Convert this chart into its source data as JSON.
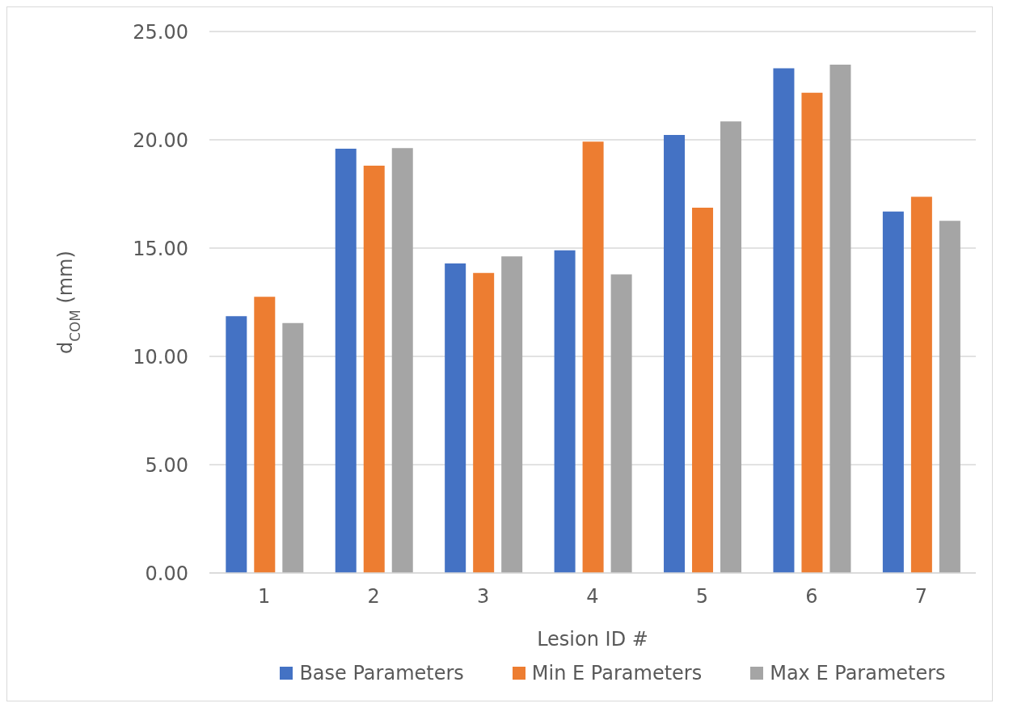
{
  "chart_data": {
    "type": "bar",
    "xlabel": "Lesion ID #",
    "ylabel": "d$_{COM}$ (mm)",
    "categories": [
      "1",
      "2",
      "3",
      "4",
      "5",
      "6",
      "7"
    ],
    "series": [
      {
        "name": "Base Parameters",
        "color": "#4472c4",
        "values": [
          11.86,
          19.59,
          14.29,
          14.9,
          20.22,
          23.3,
          16.69
        ]
      },
      {
        "name": "Min E Parameters",
        "color": "#ed7d31",
        "values": [
          12.75,
          18.81,
          13.85,
          19.92,
          16.87,
          22.17,
          17.37
        ]
      },
      {
        "name": "Max E Parameters",
        "color": "#a5a5a5",
        "values": [
          11.54,
          19.62,
          14.62,
          13.79,
          20.85,
          23.47,
          16.26
        ]
      }
    ],
    "ylim": [
      0,
      25
    ],
    "yticks": [
      {
        "value": 0,
        "label": "0.00"
      },
      {
        "value": 5,
        "label": "5.00"
      },
      {
        "value": 10,
        "label": "10.00"
      },
      {
        "value": 15,
        "label": "15.00"
      },
      {
        "value": 20,
        "label": "20.00"
      },
      {
        "value": 25,
        "label": "25.00"
      }
    ],
    "grid": "y",
    "legend": "bottom"
  }
}
